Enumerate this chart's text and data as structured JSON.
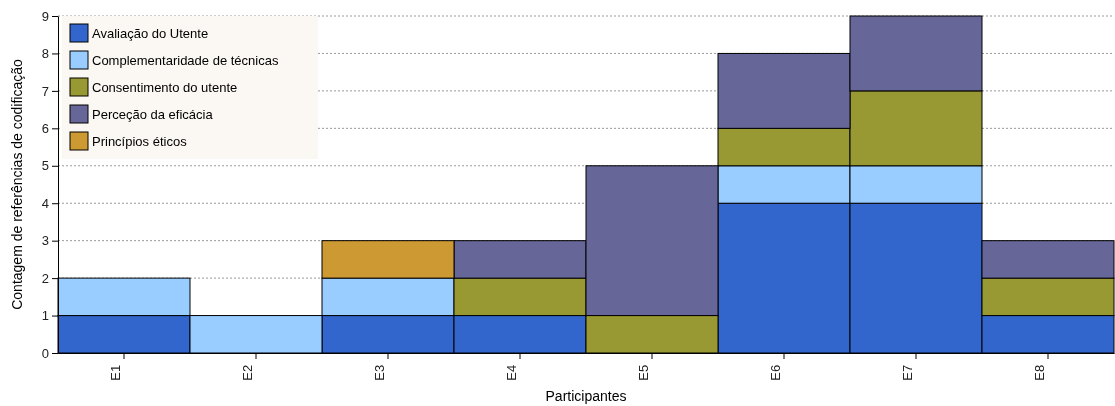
{
  "chart_data": {
    "type": "bar",
    "stacked": true,
    "xlabel": "Participantes",
    "ylabel": "Contagem de referências de codificação",
    "categories": [
      "E1",
      "E2",
      "E3",
      "E4",
      "E5",
      "E6",
      "E7",
      "E8"
    ],
    "series": [
      {
        "name": "Avaliação do Utente",
        "color": "#3366cc",
        "values": [
          1,
          null,
          1,
          1,
          null,
          4,
          4,
          1
        ]
      },
      {
        "name": "Complementaridade de técnicas",
        "color": "#99ccff",
        "values": [
          1,
          1,
          1,
          null,
          null,
          1,
          1,
          null
        ]
      },
      {
        "name": "Consentimento do utente",
        "color": "#999933",
        "values": [
          null,
          null,
          null,
          1,
          1,
          1,
          2,
          1
        ]
      },
      {
        "name": "Perceção da eficácia",
        "color": "#666699",
        "values": [
          null,
          null,
          null,
          1,
          4,
          2,
          2,
          1
        ]
      },
      {
        "name": "Princípios éticos",
        "color": "#cc9933",
        "values": [
          null,
          null,
          1,
          null,
          null,
          null,
          null,
          null
        ]
      }
    ],
    "ylim": [
      0,
      9
    ],
    "yticks": [
      0,
      1,
      2,
      3,
      4,
      5,
      6,
      7,
      8,
      9
    ],
    "grid": "y",
    "legend": "top left"
  }
}
